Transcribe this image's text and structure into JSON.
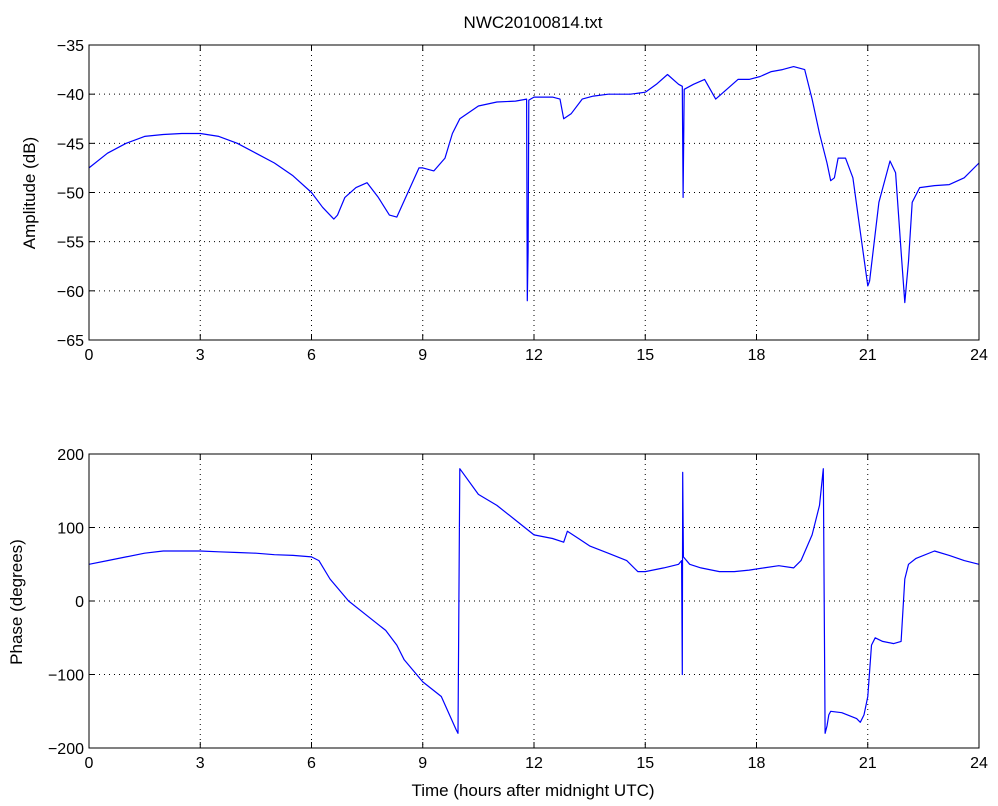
{
  "chart_data": [
    {
      "type": "line",
      "title": "NWC20100814.txt",
      "xlabel": "",
      "ylabel": "Amplitude (dB)",
      "xlim": [
        0,
        24
      ],
      "ylim": [
        -65,
        -35
      ],
      "grid": true,
      "xticks": [
        "0",
        "3",
        "6",
        "9",
        "12",
        "15",
        "18",
        "21",
        "24"
      ],
      "yticks": [
        "-35",
        "-40",
        "-45",
        "-50",
        "-55",
        "-60",
        "-65"
      ],
      "series": [
        {
          "color": "#0000ff",
          "x": [
            0,
            0.5,
            1,
            1.5,
            2,
            2.5,
            3,
            3.5,
            4,
            4.5,
            5,
            5.5,
            6,
            6.3,
            6.6,
            6.7,
            6.9,
            7.2,
            7.5,
            7.8,
            8.1,
            8.3,
            8.6,
            8.9,
            9.0,
            9.3,
            9.6,
            9.8,
            10.0,
            10.5,
            11.0,
            11.5,
            11.8,
            11.82,
            11.84,
            11.86,
            12.0,
            12.5,
            12.7,
            12.8,
            13.0,
            13.3,
            13.6,
            14.0,
            14.3,
            14.6,
            15.0,
            15.3,
            15.6,
            15.9,
            16.0,
            16.02,
            16.05,
            16.3,
            16.6,
            16.9,
            17.2,
            17.5,
            17.8,
            18.1,
            18.4,
            18.7,
            19.0,
            19.3,
            19.5,
            19.7,
            19.9,
            20.0,
            20.1,
            20.2,
            20.4,
            20.6,
            20.8,
            21.0,
            21.05,
            21.3,
            21.6,
            21.75,
            21.9,
            22.0,
            22.1,
            22.2,
            22.4,
            22.8,
            23.2,
            23.6,
            24.0
          ],
          "y": [
            -47.5,
            -46.0,
            -45.0,
            -44.3,
            -44.1,
            -44.0,
            -44.0,
            -44.3,
            -45.0,
            -46.0,
            -47.0,
            -48.3,
            -50.0,
            -51.5,
            -52.7,
            -52.3,
            -50.5,
            -49.5,
            -49.0,
            -50.5,
            -52.3,
            -52.5,
            -50.0,
            -47.5,
            -47.5,
            -47.8,
            -46.5,
            -44.0,
            -42.5,
            -41.2,
            -40.8,
            -40.7,
            -40.5,
            -61.0,
            -56.0,
            -40.6,
            -40.3,
            -40.3,
            -40.5,
            -42.5,
            -42.0,
            -40.5,
            -40.2,
            -40.0,
            -40.0,
            -40.0,
            -39.8,
            -39.0,
            -38.0,
            -39.0,
            -39.2,
            -50.5,
            -39.5,
            -39.0,
            -38.5,
            -40.5,
            -39.5,
            -38.5,
            -38.5,
            -38.2,
            -37.7,
            -37.5,
            -37.2,
            -37.5,
            -40.5,
            -44.0,
            -47.0,
            -48.8,
            -48.5,
            -46.5,
            -46.5,
            -48.5,
            -54.0,
            -59.5,
            -59.0,
            -51.0,
            -46.8,
            -48.0,
            -56.0,
            -61.2,
            -57.0,
            -51.0,
            -49.5,
            -49.3,
            -49.2,
            -48.5,
            -47.0
          ]
        }
      ]
    },
    {
      "type": "line",
      "title": "",
      "xlabel": "Time (hours after midnight UTC)",
      "ylabel": "Phase (degrees)",
      "xlim": [
        0,
        24
      ],
      "ylim": [
        -200,
        200
      ],
      "grid": true,
      "xticks": [
        "0",
        "3",
        "6",
        "9",
        "12",
        "15",
        "18",
        "21",
        "24"
      ],
      "yticks": [
        "200",
        "100",
        "0",
        "-100",
        "-200"
      ],
      "series": [
        {
          "color": "#0000ff",
          "x": [
            0,
            0.5,
            1,
            1.5,
            2,
            2.5,
            3,
            3.5,
            4,
            4.5,
            5,
            5.5,
            6,
            6.2,
            6.5,
            7.0,
            7.5,
            8.0,
            8.3,
            8.5,
            9.0,
            9.5,
            9.9,
            9.95,
            10.0,
            10.5,
            11.0,
            11.5,
            12.0,
            12.5,
            12.8,
            12.9,
            13.2,
            13.5,
            14.0,
            14.5,
            14.8,
            15.0,
            15.5,
            15.9,
            15.98,
            16.0,
            16.01,
            16.03,
            16.2,
            16.5,
            17.0,
            17.4,
            17.8,
            18.2,
            18.6,
            19.0,
            19.2,
            19.5,
            19.7,
            19.8,
            19.85,
            19.9,
            19.95,
            20.0,
            20.3,
            20.7,
            20.8,
            20.9,
            21.0,
            21.1,
            21.2,
            21.4,
            21.7,
            21.9,
            22.0,
            22.1,
            22.3,
            22.8,
            23.2,
            23.6,
            24.0
          ],
          "y": [
            50,
            55,
            60,
            65,
            68,
            68,
            68,
            67,
            66,
            65,
            63,
            62,
            60,
            55,
            30,
            0,
            -20,
            -40,
            -60,
            -80,
            -110,
            -130,
            -175,
            -180,
            180,
            145,
            130,
            110,
            90,
            85,
            80,
            95,
            85,
            75,
            65,
            55,
            40,
            40,
            45,
            50,
            55,
            -100,
            175,
            60,
            50,
            45,
            40,
            40,
            42,
            45,
            48,
            45,
            55,
            90,
            130,
            180,
            -180,
            -170,
            -155,
            -150,
            -152,
            -160,
            -165,
            -155,
            -130,
            -60,
            -50,
            -55,
            -58,
            -55,
            30,
            50,
            58,
            68,
            62,
            55,
            50
          ]
        }
      ]
    }
  ]
}
